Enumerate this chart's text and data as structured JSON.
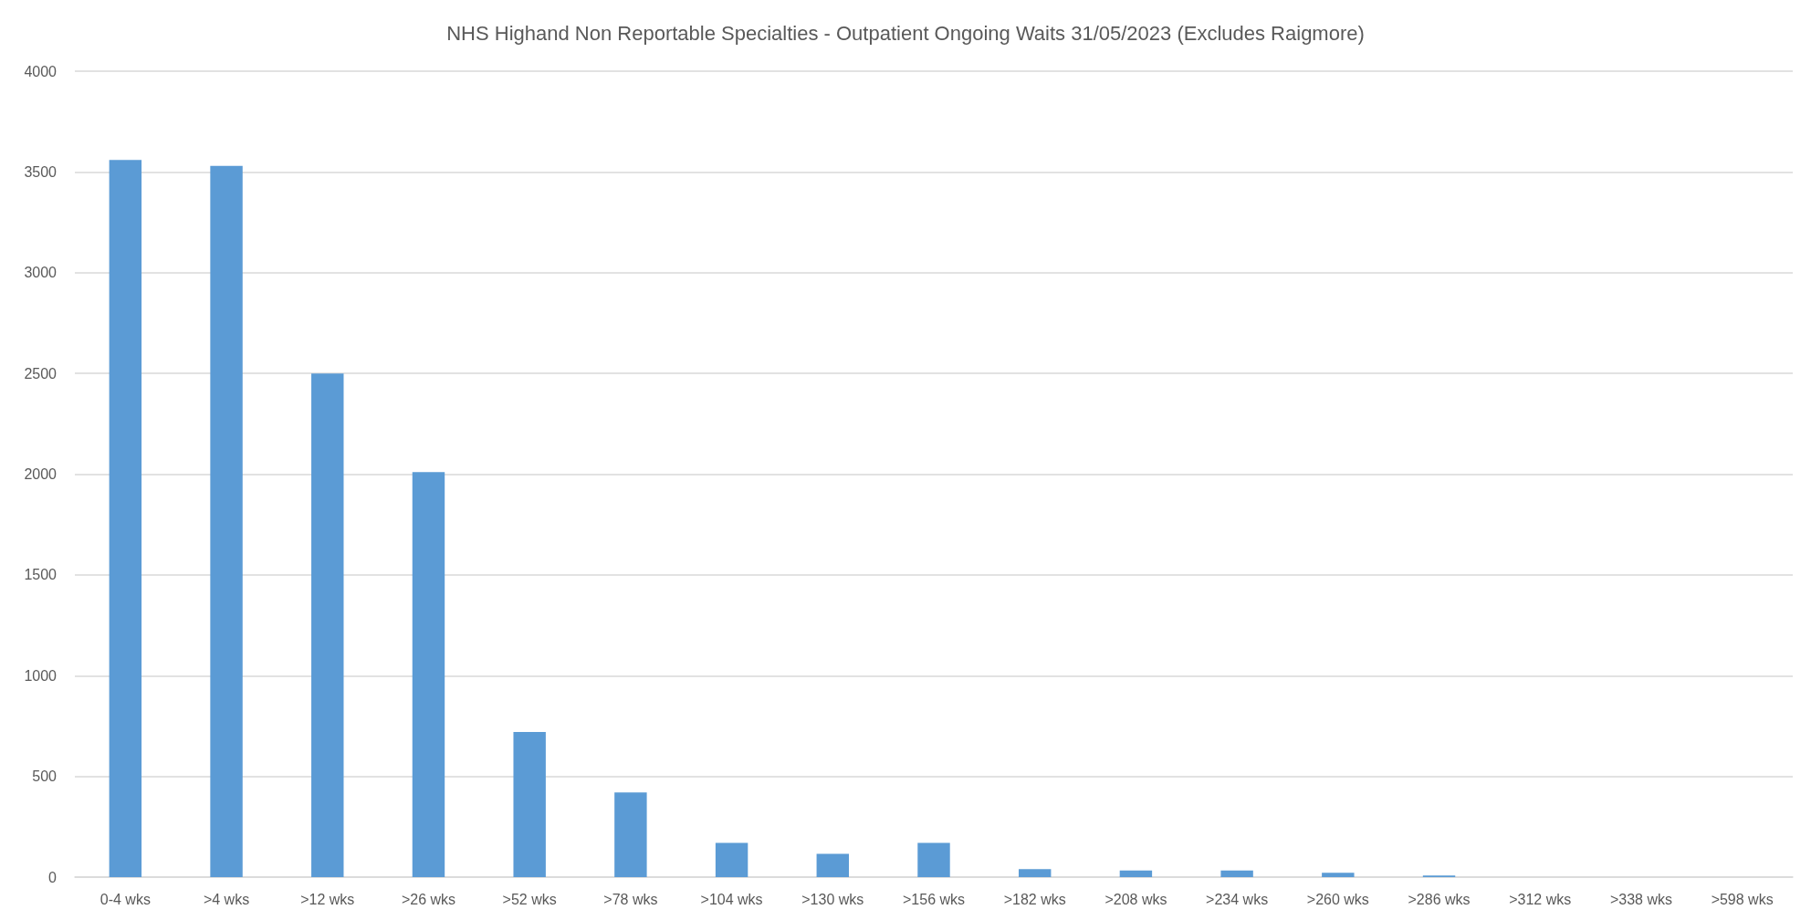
{
  "chart_data": {
    "type": "bar",
    "title": "NHS Highand Non Reportable Specialties - Outpatient Ongoing Waits 31/05/2023 (Excludes Raigmore)",
    "categories": [
      "0-4 wks",
      ">4 wks",
      ">12 wks",
      ">26 wks",
      ">52 wks",
      ">78 wks",
      ">104 wks",
      ">130 wks",
      ">156 wks",
      ">182 wks",
      ">208 wks",
      ">234 wks",
      ">260 wks",
      ">286 wks",
      ">312 wks",
      ">338 wks",
      ">598 wks"
    ],
    "values": [
      3560,
      3530,
      2500,
      2010,
      720,
      420,
      170,
      115,
      170,
      40,
      33,
      33,
      22,
      8,
      0,
      0,
      0
    ],
    "color": "#5b9bd5",
    "ylim": [
      0,
      4000
    ],
    "yticks": [
      0,
      500,
      1000,
      1500,
      2000,
      2500,
      3000,
      3500,
      4000
    ],
    "grid": "y"
  }
}
